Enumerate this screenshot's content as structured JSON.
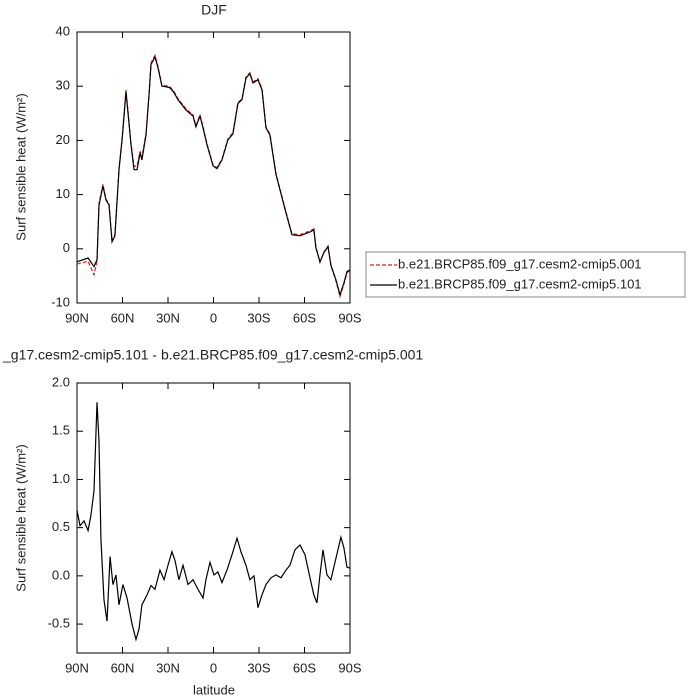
{
  "chart_data": [
    {
      "type": "line",
      "title": "DJF",
      "ylabel": "Surf sensible heat (W/m²)",
      "xlim": [
        90,
        -90
      ],
      "xticks": [
        {
          "value": 90,
          "label": "90N"
        },
        {
          "value": 60,
          "label": "60N"
        },
        {
          "value": 30,
          "label": "30N"
        },
        0,
        {
          "value": -30,
          "label": "30S"
        },
        {
          "value": -60,
          "label": "60S"
        },
        {
          "value": -90,
          "label": "90S"
        }
      ],
      "ylim": [
        -10,
        40
      ],
      "yticks": [
        -10,
        0,
        10,
        20,
        30,
        40
      ],
      "legend": "right",
      "x": [
        90,
        82.7,
        78.8,
        76.8,
        75.5,
        72.9,
        70.9,
        68.9,
        66.9,
        65,
        62.3,
        60.3,
        57.7,
        54.4,
        52.4,
        50.4,
        48.4,
        47.2,
        44.5,
        42.5,
        41.2,
        38.6,
        36.6,
        34,
        31.3,
        28.7,
        26,
        23.4,
        18.1,
        13.5,
        11.6,
        8.9,
        6.9,
        4.3,
        0.3,
        -2.3,
        -5.6,
        -9.5,
        -12.8,
        -16.1,
        -18.8,
        -21.4,
        -24,
        -26,
        -29.3,
        -32,
        -34.6,
        -37.2,
        -41.2,
        -43.8,
        -47.8,
        -51.7,
        -57,
        -63.6,
        -66.2,
        -67.5,
        -70.2,
        -72.8,
        -75.5,
        -77.4,
        -80.7,
        -83.4,
        -86,
        -88,
        -90
      ],
      "series": [
        {
          "name": "b.e21.BRCP85.f09_g17.cesm2-cmip5.001",
          "color": "#e0201b",
          "line_style": "dashed",
          "values": [
            -2.8,
            -2.3,
            -4.8,
            -2.3,
            8.4,
            11.9,
            9.2,
            8.3,
            1.5,
            2.6,
            14.9,
            20.4,
            29.3,
            19.5,
            15.2,
            15.3,
            18,
            16.9,
            21.3,
            28.6,
            34.3,
            35.7,
            33.6,
            30.2,
            30.1,
            29.9,
            29,
            27.7,
            25.8,
            24.7,
            22.7,
            24.7,
            22.5,
            19.4,
            15.5,
            15,
            16.6,
            20.3,
            21.4,
            27,
            27.7,
            31.7,
            32.5,
            30.8,
            31.4,
            29.5,
            22.5,
            21.2,
            13.9,
            11.1,
            6.8,
            2.8,
            2.6,
            3.3,
            3.7,
            0.4,
            -2.5,
            -0.6,
            0.5,
            -3.1,
            -5.9,
            -8.8,
            -6.5,
            -4.4,
            -4
          ]
        },
        {
          "name": "b.e21.BRCP85.f09_g17.cesm2-cmip5.101",
          "color": "#000000",
          "line_style": "solid",
          "values": [
            -2.4,
            -1.7,
            -3.3,
            -2,
            8,
            11.6,
            9,
            8.1,
            1.3,
            2.4,
            14.6,
            20,
            29,
            19.2,
            14.6,
            14.6,
            17.7,
            16.4,
            21,
            28.4,
            34,
            35.4,
            33.4,
            30,
            29.9,
            29.7,
            28.8,
            27.5,
            25.6,
            24.5,
            22.5,
            24.5,
            22.3,
            19.2,
            15.3,
            14.8,
            16.4,
            20.1,
            21.2,
            26.8,
            27.5,
            31.5,
            32.3,
            30.6,
            31.2,
            29.3,
            22.3,
            21,
            13.7,
            10.9,
            6.6,
            2.6,
            2.4,
            3.1,
            3.5,
            0.2,
            -2.4,
            -0.7,
            0.4,
            -3,
            -5.7,
            -8.5,
            -6.3,
            -4.2,
            -3.9
          ]
        }
      ]
    },
    {
      "type": "line",
      "title": "_g17.cesm2-cmip5.101 - b.e21.BRCP85.f09_g17.cesm2-cmip5.001",
      "ylabel": "Surf sensible heat (W/m²)",
      "xlabel": "latitude",
      "xlim": [
        90,
        -90
      ],
      "xticks": [
        {
          "value": 90,
          "label": "90N"
        },
        {
          "value": 60,
          "label": "60N"
        },
        {
          "value": 30,
          "label": "30N"
        },
        0,
        {
          "value": -30,
          "label": "30S"
        },
        {
          "value": -60,
          "label": "60S"
        },
        {
          "value": -90,
          "label": "90S"
        }
      ],
      "ylim": [
        -0.8,
        2.0
      ],
      "yticks": [
        -0.5,
        {
          "value": 0,
          "label": "0.0"
        },
        0.5,
        {
          "value": 1,
          "label": "1.0"
        },
        1.5,
        {
          "value": 2,
          "label": "2.0"
        }
      ],
      "x": [
        90,
        88,
        85.4,
        82.7,
        80.8,
        78.8,
        76.8,
        75.5,
        74.2,
        72.2,
        70.2,
        68.2,
        66.3,
        64.3,
        62.3,
        59.7,
        57,
        53.7,
        51.1,
        49.1,
        47.2,
        43.9,
        41.2,
        38.6,
        35.3,
        32.6,
        30,
        27.4,
        25.4,
        22.8,
        20.1,
        16.8,
        13.5,
        10.2,
        6.9,
        5,
        2.3,
        -0.3,
        -2.9,
        -5.6,
        -8.9,
        -12.2,
        -15.5,
        -18.1,
        -21.4,
        -24,
        -26.7,
        -29.3,
        -31.9,
        -34.6,
        -37.9,
        -41.2,
        -44.5,
        -47.8,
        -50.4,
        -53.7,
        -57,
        -60.3,
        -63.6,
        -66.2,
        -68.2,
        -70.2,
        -72.2,
        -74.8,
        -77.4,
        -80.7,
        -84,
        -86,
        -88,
        -90
      ],
      "series": [
        {
          "color": "#000000",
          "line_style": "solid",
          "values": [
            0.68,
            0.52,
            0.57,
            0.47,
            0.63,
            0.88,
            1.8,
            1.4,
            0.37,
            -0.25,
            -0.47,
            0.2,
            -0.09,
            0.01,
            -0.3,
            -0.09,
            -0.23,
            -0.5,
            -0.66,
            -0.55,
            -0.3,
            -0.2,
            -0.1,
            -0.14,
            0.06,
            -0.04,
            0.11,
            0.25,
            0.16,
            -0.04,
            0.11,
            -0.09,
            -0.04,
            -0.14,
            -0.23,
            -0.04,
            0.14,
            0.01,
            0.04,
            -0.07,
            0.06,
            0.22,
            0.39,
            0.25,
            0.11,
            -0.04,
            0,
            -0.33,
            -0.2,
            -0.09,
            -0.02,
            0.01,
            -0.02,
            0.06,
            0.11,
            0.27,
            0.32,
            0.22,
            -0.02,
            -0.2,
            -0.28,
            0.01,
            0.27,
            0.01,
            -0.04,
            0.18,
            0.4,
            0.29,
            0.09,
            0.08
          ]
        }
      ]
    }
  ]
}
